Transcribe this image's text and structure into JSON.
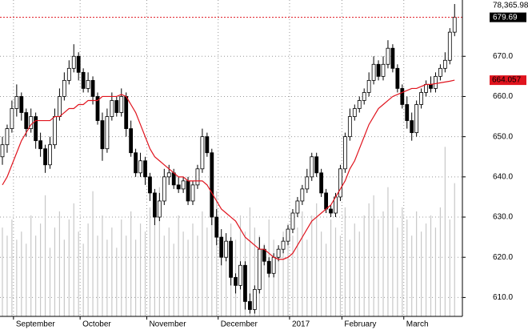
{
  "chart_data": {
    "type": "candlestick",
    "ylim": [
      605.3,
      684
    ],
    "yticks": [
      {
        "value": 610,
        "label": "610.0"
      },
      {
        "value": 620,
        "label": "620.0"
      },
      {
        "value": 630,
        "label": "630.0"
      },
      {
        "value": 640,
        "label": "640.0"
      },
      {
        "value": 650,
        "label": "650.0"
      },
      {
        "value": 660,
        "label": "660.0"
      },
      {
        "value": 670,
        "label": "670.0"
      }
    ],
    "vlim": [
      0,
      {
        "value": 78365.98,
        "label": "78,365.98"
      }
    ],
    "month_labels": [
      {
        "label": "September",
        "at": 3
      },
      {
        "label": "October",
        "at": 17
      },
      {
        "label": "November",
        "at": 31
      },
      {
        "label": "December",
        "at": 46
      },
      {
        "label": "2017",
        "at": 61
      },
      {
        "label": "February",
        "at": 72
      },
      {
        "label": "March",
        "at": 85
      }
    ],
    "grid": true,
    "up_color": "#ffffff",
    "down_color": "#000000",
    "ma_color": "#e0141e",
    "volume_color": "#c8c8c8",
    "open": [
      645,
      648,
      652,
      657,
      660,
      656,
      652,
      655,
      649,
      647,
      643,
      648,
      655,
      660,
      664,
      667,
      670,
      666,
      662,
      664,
      660,
      654,
      647,
      655,
      659,
      656,
      660,
      652,
      646,
      641,
      644,
      640,
      636,
      630,
      634,
      640,
      641,
      638,
      637,
      639,
      634,
      638,
      642,
      650,
      646,
      630,
      625,
      620,
      624,
      615,
      613,
      618,
      609,
      607,
      612,
      622,
      619,
      616,
      620,
      622,
      624,
      627,
      631,
      634,
      637,
      640,
      645,
      641,
      636,
      632,
      631,
      635,
      642,
      650,
      655,
      657,
      659,
      661,
      664,
      668,
      665,
      668,
      672,
      667,
      662,
      658,
      654,
      651,
      658,
      661,
      663,
      662,
      665,
      667,
      669,
      676
    ],
    "high": [
      650,
      653,
      659,
      663,
      661,
      657,
      657,
      656,
      651,
      648,
      650,
      657,
      662,
      666,
      669,
      673,
      671,
      667,
      666,
      665,
      661,
      656,
      657,
      661,
      660,
      662,
      661,
      654,
      647,
      646,
      645,
      641,
      637,
      636,
      642,
      643,
      642,
      640,
      640,
      640,
      639,
      643,
      652,
      651,
      647,
      632,
      627,
      626,
      625,
      616,
      619,
      619,
      611,
      613,
      625,
      623,
      620,
      621,
      623,
      625,
      628,
      632,
      635,
      638,
      642,
      646,
      646,
      642,
      637,
      633,
      636,
      643,
      651,
      657,
      658,
      660,
      662,
      666,
      670,
      669,
      670,
      674,
      673,
      668,
      663,
      660,
      656,
      659,
      662,
      664,
      665,
      666,
      668,
      671,
      677,
      683
    ],
    "low": [
      643,
      646,
      651,
      655,
      654,
      650,
      651,
      647,
      645,
      641,
      642,
      647,
      654,
      659,
      663,
      666,
      664,
      661,
      661,
      658,
      653,
      644,
      646,
      654,
      655,
      655,
      650,
      645,
      640,
      640,
      638,
      634,
      628,
      629,
      633,
      638,
      637,
      636,
      636,
      633,
      633,
      637,
      641,
      645,
      628,
      623,
      618,
      619,
      613,
      611,
      612,
      607,
      606,
      606,
      611,
      618,
      615,
      615,
      619,
      621,
      623,
      626,
      630,
      633,
      636,
      639,
      640,
      635,
      631,
      630,
      630,
      634,
      641,
      649,
      654,
      656,
      658,
      660,
      663,
      664,
      664,
      667,
      666,
      661,
      657,
      652,
      649,
      650,
      657,
      660,
      661,
      661,
      664,
      666,
      668,
      675
    ],
    "close": [
      648,
      652,
      657,
      660,
      656,
      652,
      655,
      649,
      647,
      643,
      648,
      655,
      660,
      664,
      667,
      670,
      666,
      662,
      664,
      660,
      654,
      647,
      655,
      659,
      656,
      660,
      652,
      646,
      641,
      644,
      640,
      636,
      630,
      634,
      640,
      641,
      638,
      637,
      639,
      634,
      638,
      642,
      650,
      646,
      630,
      625,
      620,
      624,
      615,
      613,
      618,
      609,
      607,
      612,
      622,
      619,
      616,
      620,
      622,
      624,
      627,
      631,
      634,
      637,
      640,
      645,
      641,
      636,
      632,
      631,
      635,
      642,
      650,
      655,
      657,
      659,
      661,
      664,
      668,
      665,
      668,
      672,
      667,
      662,
      658,
      654,
      651,
      658,
      661,
      663,
      662,
      665,
      667,
      669,
      676,
      679.69
    ],
    "volume": [
      22000,
      20000,
      24000,
      19000,
      21000,
      18000,
      25000,
      20000,
      23000,
      30000,
      17000,
      22000,
      26000,
      19000,
      24000,
      28000,
      21000,
      18000,
      23000,
      31000,
      20000,
      25000,
      19000,
      22000,
      17000,
      24000,
      20000,
      26000,
      19000,
      23000,
      21000,
      27000,
      24000,
      32000,
      20000,
      22000,
      18000,
      25000,
      21000,
      19000,
      23000,
      20000,
      26000,
      22000,
      24000,
      31000,
      20000,
      18000,
      23000,
      19000,
      25000,
      21000,
      27000,
      22000,
      20000,
      18000,
      24000,
      19000,
      17000,
      21000,
      23000,
      20000,
      22000,
      26000,
      19000,
      25000,
      28000,
      21000,
      18000,
      24000,
      22000,
      20000,
      27000,
      19000,
      23000,
      21000,
      25000,
      28000,
      30000,
      24000,
      26000,
      32000,
      29000,
      22000,
      27000,
      24000,
      20000,
      26000,
      21000,
      23000,
      25000,
      22000,
      27000,
      42000,
      24000,
      33000
    ],
    "ma": {
      "values": [
        638,
        640,
        643,
        646,
        649,
        651,
        653,
        654,
        654,
        654,
        654,
        655,
        655,
        656,
        657,
        657,
        658,
        658,
        659,
        659,
        659,
        660,
        660,
        660,
        660,
        660.5,
        660,
        658,
        656,
        653,
        650,
        647,
        645,
        644,
        643,
        642,
        641,
        640,
        640,
        639,
        639,
        639,
        639,
        638,
        636,
        634,
        632,
        631,
        630,
        629,
        627,
        625,
        624,
        623,
        622,
        622,
        621,
        620,
        619.5,
        619.5,
        620,
        621,
        623,
        625,
        627,
        629,
        630,
        631,
        632,
        633,
        635,
        637,
        639,
        642,
        644,
        647,
        650,
        653,
        655,
        657,
        658,
        659,
        660,
        660.5,
        661,
        661.5,
        662,
        662,
        662.5,
        663,
        663,
        663.2,
        663.4,
        663.6,
        663.8,
        664.057
      ]
    }
  }
}
